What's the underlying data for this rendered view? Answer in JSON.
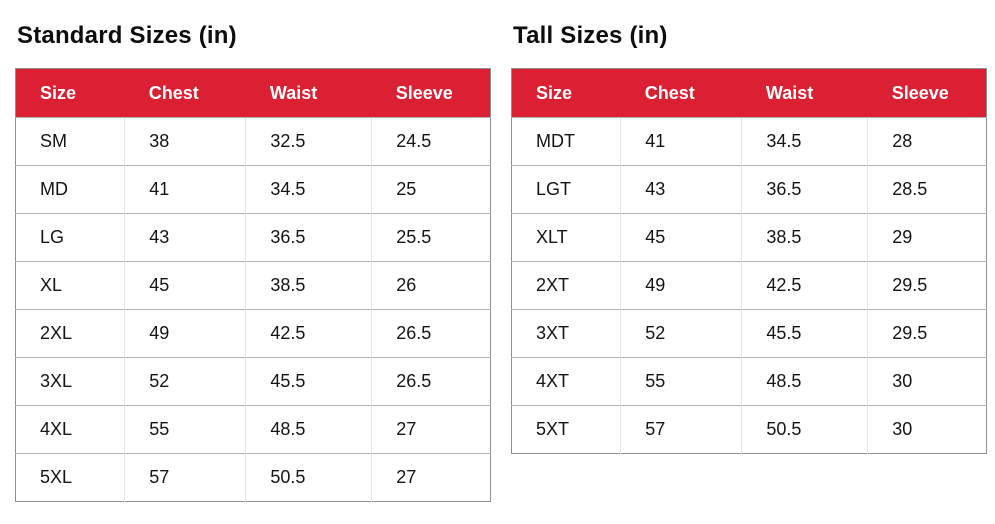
{
  "colors": {
    "header_bg": "#da2032",
    "header_text": "#ffffff",
    "row_separator": "#b3b3b3",
    "outer_border": "#8f8f8f"
  },
  "chart_data": [
    {
      "type": "table",
      "title": "Standard Sizes (in)",
      "columns": [
        "Size",
        "Chest",
        "Waist",
        "Sleeve"
      ],
      "rows": [
        [
          "SM",
          "38",
          "32.5",
          "24.5"
        ],
        [
          "MD",
          "41",
          "34.5",
          "25"
        ],
        [
          "LG",
          "43",
          "36.5",
          "25.5"
        ],
        [
          "XL",
          "45",
          "38.5",
          "26"
        ],
        [
          "2XL",
          "49",
          "42.5",
          "26.5"
        ],
        [
          "3XL",
          "52",
          "45.5",
          "26.5"
        ],
        [
          "4XL",
          "55",
          "48.5",
          "27"
        ],
        [
          "5XL",
          "57",
          "50.5",
          "27"
        ]
      ]
    },
    {
      "type": "table",
      "title": "Tall Sizes (in)",
      "columns": [
        "Size",
        "Chest",
        "Waist",
        "Sleeve"
      ],
      "rows": [
        [
          "MDT",
          "41",
          "34.5",
          "28"
        ],
        [
          "LGT",
          "43",
          "36.5",
          "28.5"
        ],
        [
          "XLT",
          "45",
          "38.5",
          "29"
        ],
        [
          "2XT",
          "49",
          "42.5",
          "29.5"
        ],
        [
          "3XT",
          "52",
          "45.5",
          "29.5"
        ],
        [
          "4XT",
          "55",
          "48.5",
          "30"
        ],
        [
          "5XT",
          "57",
          "50.5",
          "30"
        ]
      ]
    }
  ]
}
